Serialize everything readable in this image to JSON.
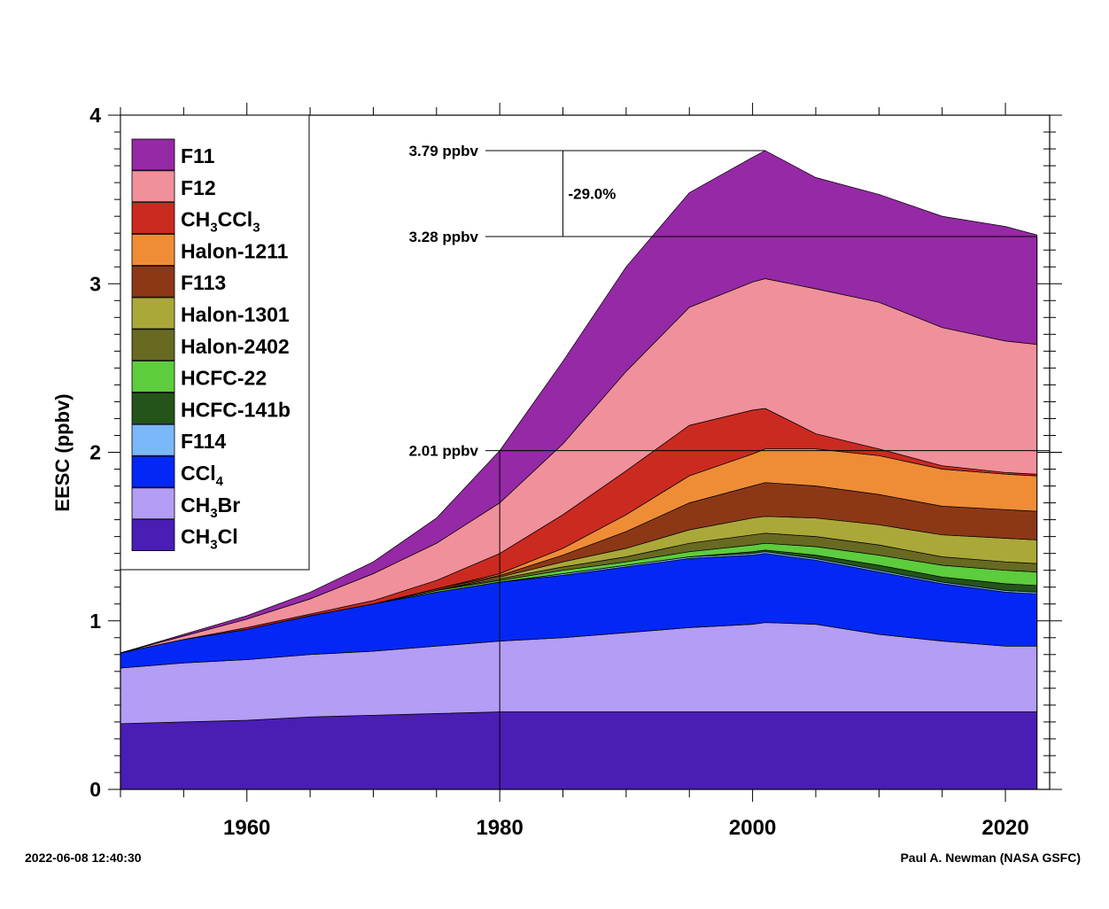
{
  "chart_data": {
    "type": "area",
    "stacked": true,
    "ylabel": "EESC (ppbv)",
    "xlabel": "",
    "xlim": [
      1950,
      2023.5
    ],
    "ylim": [
      0,
      4
    ],
    "x_ticks": [
      1960,
      1980,
      2000,
      2020
    ],
    "y_ticks": [
      0,
      1,
      2,
      3,
      4
    ],
    "grid": false,
    "legend_position": "top-left",
    "x": [
      1950,
      1955,
      1960,
      1965,
      1970,
      1975,
      1980,
      1985,
      1990,
      1995,
      2000,
      2001,
      2005,
      2010,
      2015,
      2020,
      2022.5
    ],
    "series": [
      {
        "name": "CH3Cl",
        "label_main": "CH",
        "label_sub1": "3",
        "label_rest": "Cl",
        "label_sub2": "",
        "color": "#4a1db5",
        "values": [
          0.39,
          0.4,
          0.41,
          0.43,
          0.44,
          0.45,
          0.46,
          0.46,
          0.46,
          0.46,
          0.46,
          0.46,
          0.46,
          0.46,
          0.46,
          0.46,
          0.46
        ]
      },
      {
        "name": "CH3Br",
        "label_main": "CH",
        "label_sub1": "3",
        "label_rest": "Br",
        "label_sub2": "",
        "color": "#b39df5",
        "values": [
          0.33,
          0.35,
          0.36,
          0.37,
          0.38,
          0.4,
          0.42,
          0.44,
          0.47,
          0.5,
          0.52,
          0.53,
          0.52,
          0.46,
          0.42,
          0.39,
          0.39
        ]
      },
      {
        "name": "CCl4",
        "label_main": "CCl",
        "label_sub1": "4",
        "label_rest": "",
        "label_sub2": "",
        "color": "#0328f5",
        "values": [
          0.09,
          0.14,
          0.18,
          0.23,
          0.28,
          0.32,
          0.35,
          0.37,
          0.39,
          0.41,
          0.41,
          0.41,
          0.38,
          0.37,
          0.34,
          0.32,
          0.31
        ]
      },
      {
        "name": "F114",
        "label_main": "F114",
        "label_sub1": "",
        "label_rest": "",
        "label_sub2": "",
        "color": "#7ab8fa",
        "values": [
          0.0,
          0.0,
          0.0,
          0.0,
          0.0,
          0.0,
          0.0,
          0.01,
          0.01,
          0.01,
          0.01,
          0.01,
          0.01,
          0.01,
          0.01,
          0.01,
          0.01
        ]
      },
      {
        "name": "HCFC-141b",
        "label_main": "HCFC-141b",
        "label_sub1": "",
        "label_rest": "",
        "label_sub2": "",
        "color": "#245419",
        "values": [
          0.0,
          0.0,
          0.0,
          0.0,
          0.0,
          0.0,
          0.0,
          0.0,
          0.0,
          0.0,
          0.01,
          0.01,
          0.02,
          0.03,
          0.03,
          0.04,
          0.04
        ]
      },
      {
        "name": "HCFC-22",
        "label_main": "HCFC-22",
        "label_sub1": "",
        "label_rest": "",
        "label_sub2": "",
        "color": "#5dcc3d",
        "values": [
          0.0,
          0.0,
          0.0,
          0.0,
          0.0,
          0.01,
          0.01,
          0.02,
          0.02,
          0.03,
          0.04,
          0.04,
          0.05,
          0.06,
          0.07,
          0.08,
          0.08
        ]
      },
      {
        "name": "Halon-2402",
        "label_main": "Halon-2402",
        "label_sub1": "",
        "label_rest": "",
        "label_sub2": "",
        "color": "#686a22",
        "values": [
          0.0,
          0.0,
          0.0,
          0.0,
          0.0,
          0.0,
          0.01,
          0.02,
          0.03,
          0.05,
          0.06,
          0.06,
          0.06,
          0.06,
          0.05,
          0.05,
          0.05
        ]
      },
      {
        "name": "Halon-1301",
        "label_main": "Halon-1301",
        "label_sub1": "",
        "label_rest": "",
        "label_sub2": "",
        "color": "#aba83a",
        "values": [
          0.0,
          0.0,
          0.0,
          0.0,
          0.0,
          0.0,
          0.01,
          0.03,
          0.05,
          0.08,
          0.1,
          0.1,
          0.11,
          0.12,
          0.13,
          0.14,
          0.14
        ]
      },
      {
        "name": "F113",
        "label_main": "F113",
        "label_sub1": "",
        "label_rest": "",
        "label_sub2": "",
        "color": "#8c3817",
        "values": [
          0.0,
          0.0,
          0.0,
          0.0,
          0.0,
          0.01,
          0.01,
          0.04,
          0.1,
          0.16,
          0.19,
          0.2,
          0.19,
          0.18,
          0.17,
          0.17,
          0.17
        ]
      },
      {
        "name": "Halon-1211",
        "label_main": "Halon-1211",
        "label_sub1": "",
        "label_rest": "",
        "label_sub2": "",
        "color": "#ef8d37",
        "values": [
          0.0,
          0.0,
          0.0,
          0.0,
          0.0,
          0.0,
          0.01,
          0.04,
          0.1,
          0.16,
          0.19,
          0.2,
          0.22,
          0.23,
          0.22,
          0.21,
          0.21
        ]
      },
      {
        "name": "CH3CCl3",
        "label_main": "CH",
        "label_sub1": "3",
        "label_rest": "CCl",
        "label_sub2": "3",
        "color": "#cb2a20",
        "values": [
          0.0,
          0.0,
          0.01,
          0.01,
          0.02,
          0.05,
          0.12,
          0.2,
          0.26,
          0.3,
          0.26,
          0.24,
          0.09,
          0.04,
          0.02,
          0.01,
          0.01
        ]
      },
      {
        "name": "F12",
        "label_main": "F12",
        "label_sub1": "",
        "label_rest": "",
        "label_sub2": "",
        "color": "#f0909a",
        "values": [
          0.0,
          0.02,
          0.05,
          0.09,
          0.16,
          0.22,
          0.3,
          0.42,
          0.59,
          0.7,
          0.76,
          0.77,
          0.86,
          0.87,
          0.82,
          0.78,
          0.77
        ]
      },
      {
        "name": "F11",
        "label_main": "F11",
        "label_sub1": "",
        "label_rest": "",
        "label_sub2": "",
        "color": "#9629a6",
        "values": [
          0.0,
          0.01,
          0.02,
          0.04,
          0.07,
          0.15,
          0.31,
          0.49,
          0.62,
          0.68,
          0.74,
          0.76,
          0.66,
          0.64,
          0.66,
          0.68,
          0.65
        ]
      }
    ],
    "annotations": {
      "peak_label": "3.79 ppbv",
      "current_label": "3.28 ppbv",
      "level_1980_label": "2.01 ppbv",
      "change_label": "-29.0%",
      "peak_value": 3.79,
      "current_value": 3.28,
      "level_1980_value": 2.01,
      "peak_year": 2001,
      "current_year": 2022.5,
      "ref_year": 1980,
      "bracket_year": 1985
    }
  },
  "footer": {
    "timestamp": "2022-06-08 12:40:30",
    "credit": "Paul A. Newman (NASA GSFC)"
  }
}
